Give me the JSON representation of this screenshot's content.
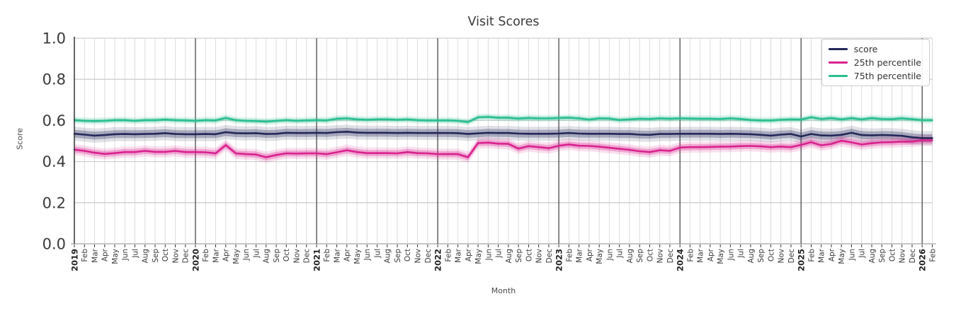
{
  "title": "Visit Scores",
  "ylabel": "Score",
  "xlabel": "Month",
  "legend": [
    {
      "label": "score",
      "color": "#232858"
    },
    {
      "label": "25th percentile",
      "color": "#d9218e"
    },
    {
      "label": "75th percentile",
      "color": "#2abe90"
    }
  ],
  "colors": {
    "axis_spine": "#333333",
    "year_gridline": "#3c3c3c",
    "month_gridline": "#dcdcdc",
    "h_gridline": "#cfcfcf",
    "baseline": "#c6c6c6"
  },
  "chart_data": {
    "type": "line",
    "title": "Visit Scores",
    "xlabel": "Month",
    "ylabel": "Score",
    "ylim": [
      0.0,
      1.0
    ],
    "grid": true,
    "legend_position": "upper right",
    "ytick_labels": [
      "0.0",
      "0.2",
      "0.4",
      "0.6",
      "0.8",
      "1.0"
    ],
    "ytick_values": [
      0.0,
      0.2,
      0.4,
      0.6,
      0.8,
      1.0
    ],
    "x": [
      "2019",
      "Feb",
      "Mar",
      "Apr",
      "May",
      "Jun",
      "Jul",
      "Aug",
      "Sep",
      "Oct",
      "Nov",
      "Dec",
      "2020",
      "Feb",
      "Mar",
      "Apr",
      "May",
      "Jun",
      "Jul",
      "Aug",
      "Sep",
      "Oct",
      "Nov",
      "Dec",
      "2021",
      "Feb",
      "Mar",
      "Apr",
      "May",
      "Jun",
      "Jul",
      "Aug",
      "Sep",
      "Oct",
      "Nov",
      "Dec",
      "2022",
      "Feb",
      "Mar",
      "Apr",
      "May",
      "Jun",
      "Jul",
      "Aug",
      "Sep",
      "Oct",
      "Nov",
      "Dec",
      "2023",
      "Feb",
      "Mar",
      "Apr",
      "May",
      "Jun",
      "Jul",
      "Aug",
      "Sep",
      "Oct",
      "Nov",
      "Dec",
      "2024",
      "Feb",
      "Mar",
      "Apr",
      "May",
      "Jun",
      "Jul",
      "Aug",
      "Sep",
      "Oct",
      "Nov",
      "Dec",
      "2025",
      "Feb",
      "Mar",
      "Apr",
      "May",
      "Jun",
      "Jul",
      "Aug",
      "Sep",
      "Oct",
      "Nov",
      "Dec",
      "2026",
      "Feb"
    ],
    "series": [
      {
        "name": "score",
        "color": "#232858",
        "band_halfwidth": 0.019,
        "values": [
          0.535,
          0.531,
          0.526,
          0.529,
          0.533,
          0.534,
          0.533,
          0.534,
          0.535,
          0.538,
          0.534,
          0.533,
          0.533,
          0.534,
          0.533,
          0.543,
          0.538,
          0.537,
          0.538,
          0.534,
          0.535,
          0.54,
          0.539,
          0.539,
          0.54,
          0.539,
          0.543,
          0.545,
          0.541,
          0.54,
          0.54,
          0.54,
          0.539,
          0.54,
          0.539,
          0.539,
          0.539,
          0.539,
          0.538,
          0.534,
          0.537,
          0.54,
          0.539,
          0.539,
          0.536,
          0.535,
          0.535,
          0.535,
          0.536,
          0.539,
          0.536,
          0.535,
          0.535,
          0.535,
          0.534,
          0.534,
          0.531,
          0.53,
          0.534,
          0.534,
          0.535,
          0.535,
          0.535,
          0.535,
          0.534,
          0.535,
          0.534,
          0.533,
          0.53,
          0.526,
          0.531,
          0.534,
          0.522,
          0.534,
          0.527,
          0.526,
          0.53,
          0.54,
          0.529,
          0.527,
          0.529,
          0.528,
          0.525,
          0.518,
          0.514,
          0.514
        ]
      },
      {
        "name": "25th percentile",
        "color": "#d9218e",
        "band_halfwidth": 0.015,
        "values": [
          0.458,
          0.452,
          0.443,
          0.437,
          0.441,
          0.446,
          0.446,
          0.452,
          0.447,
          0.447,
          0.452,
          0.446,
          0.446,
          0.445,
          0.44,
          0.48,
          0.44,
          0.436,
          0.434,
          0.421,
          0.432,
          0.44,
          0.439,
          0.44,
          0.44,
          0.436,
          0.445,
          0.455,
          0.446,
          0.441,
          0.441,
          0.441,
          0.44,
          0.446,
          0.441,
          0.44,
          0.436,
          0.436,
          0.436,
          0.421,
          0.49,
          0.492,
          0.487,
          0.486,
          0.463,
          0.475,
          0.47,
          0.465,
          0.477,
          0.483,
          0.477,
          0.476,
          0.472,
          0.467,
          0.462,
          0.457,
          0.45,
          0.446,
          0.455,
          0.452,
          0.468,
          0.47,
          0.47,
          0.471,
          0.472,
          0.473,
          0.475,
          0.476,
          0.474,
          0.47,
          0.473,
          0.47,
          0.481,
          0.494,
          0.479,
          0.486,
          0.501,
          0.493,
          0.483,
          0.489,
          0.493,
          0.494,
          0.497,
          0.497,
          0.503,
          0.503
        ]
      },
      {
        "name": "75th percentile",
        "color": "#2abe90",
        "band_halfwidth": 0.0095,
        "values": [
          0.601,
          0.598,
          0.597,
          0.598,
          0.601,
          0.601,
          0.598,
          0.601,
          0.601,
          0.604,
          0.601,
          0.6,
          0.598,
          0.601,
          0.6,
          0.612,
          0.601,
          0.598,
          0.597,
          0.594,
          0.598,
          0.601,
          0.598,
          0.6,
          0.601,
          0.6,
          0.608,
          0.61,
          0.605,
          0.603,
          0.605,
          0.605,
          0.603,
          0.605,
          0.601,
          0.6,
          0.6,
          0.6,
          0.598,
          0.592,
          0.615,
          0.617,
          0.613,
          0.613,
          0.609,
          0.612,
          0.61,
          0.61,
          0.612,
          0.613,
          0.61,
          0.604,
          0.61,
          0.609,
          0.602,
          0.605,
          0.608,
          0.607,
          0.61,
          0.608,
          0.61,
          0.609,
          0.608,
          0.608,
          0.607,
          0.61,
          0.607,
          0.602,
          0.6,
          0.6,
          0.603,
          0.605,
          0.604,
          0.615,
          0.607,
          0.611,
          0.605,
          0.611,
          0.605,
          0.611,
          0.607,
          0.606,
          0.61,
          0.606,
          0.601,
          0.601
        ]
      }
    ]
  }
}
